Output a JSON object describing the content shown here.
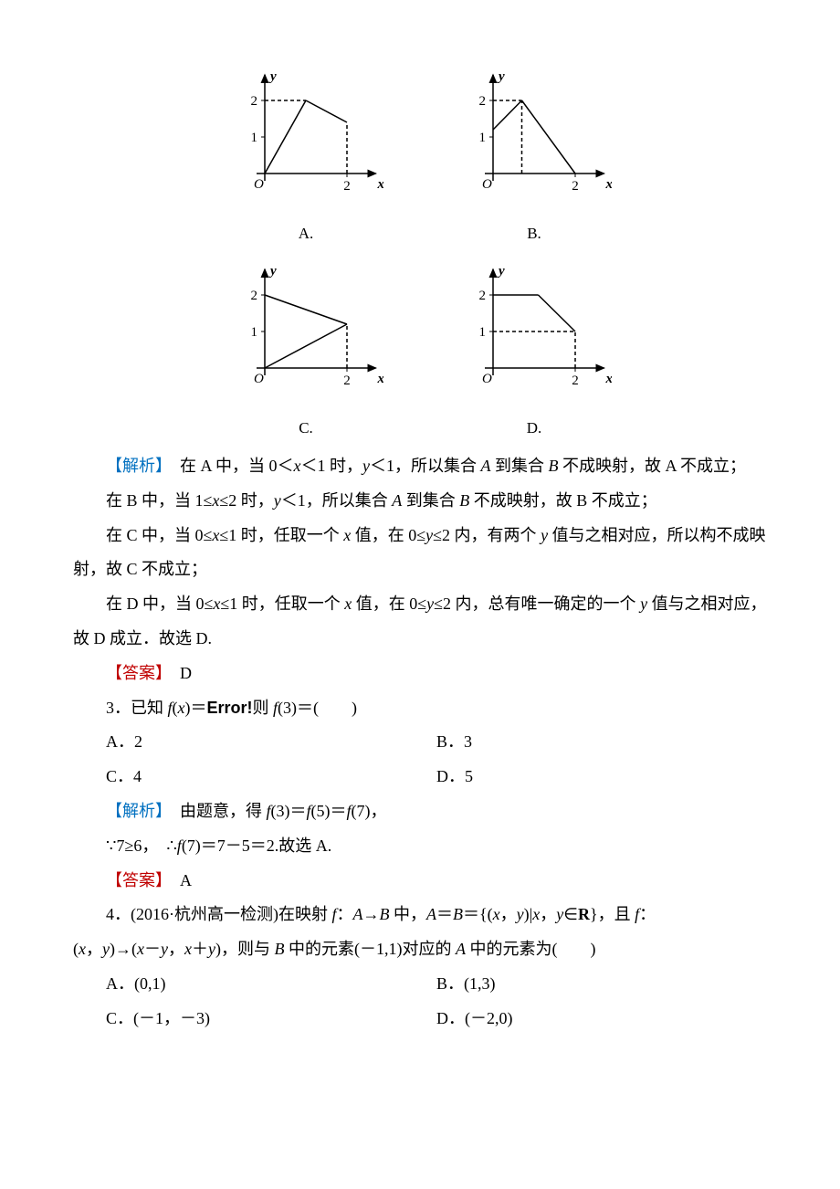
{
  "graphs": {
    "A": {
      "label": "A.",
      "axis_color": "#000000",
      "line_color": "#000000",
      "dash_color": "#000000",
      "y_label": "y",
      "x_label": "x",
      "origin": "O",
      "tick1": "1",
      "tick2": "2",
      "y_ticks": [
        1,
        2
      ],
      "x_ticks": [
        2
      ],
      "segments": [
        {
          "from": [
            0,
            0
          ],
          "to": [
            1,
            2
          ],
          "style": "solid"
        },
        {
          "from": [
            1,
            2
          ],
          "to": [
            2,
            1.4
          ],
          "style": "solid"
        },
        {
          "from": [
            2,
            0
          ],
          "to": [
            2,
            1.4
          ],
          "style": "dashed"
        },
        {
          "from": [
            0,
            2
          ],
          "to": [
            1,
            2
          ],
          "style": "dashed"
        }
      ]
    },
    "B": {
      "label": "B.",
      "axis_color": "#000000",
      "line_color": "#000000",
      "dash_color": "#000000",
      "y_label": "y",
      "x_label": "x",
      "origin": "O",
      "tick1": "1",
      "tick2": "2",
      "y_ticks": [
        1,
        2
      ],
      "x_ticks": [
        2
      ],
      "segments": [
        {
          "from": [
            0,
            1.2
          ],
          "to": [
            0.7,
            2
          ],
          "style": "solid"
        },
        {
          "from": [
            0.7,
            2
          ],
          "to": [
            2,
            0
          ],
          "style": "solid"
        },
        {
          "from": [
            0,
            2
          ],
          "to": [
            0.7,
            2
          ],
          "style": "dashed"
        },
        {
          "from": [
            0.7,
            0
          ],
          "to": [
            0.7,
            2
          ],
          "style": "dashed"
        }
      ]
    },
    "C": {
      "label": "C.",
      "axis_color": "#000000",
      "line_color": "#000000",
      "dash_color": "#000000",
      "y_label": "y",
      "x_label": "x",
      "origin": "O",
      "tick1": "1",
      "tick2": "2",
      "y_ticks": [
        1,
        2
      ],
      "x_ticks": [
        2
      ],
      "segments": [
        {
          "from": [
            0,
            2
          ],
          "to": [
            2,
            1.2
          ],
          "style": "solid"
        },
        {
          "from": [
            0,
            0
          ],
          "to": [
            2,
            1.2
          ],
          "style": "solid"
        },
        {
          "from": [
            2,
            0
          ],
          "to": [
            2,
            1.2
          ],
          "style": "dashed"
        }
      ]
    },
    "D": {
      "label": "D.",
      "axis_color": "#000000",
      "line_color": "#000000",
      "dash_color": "#000000",
      "y_label": "y",
      "x_label": "x",
      "origin": "O",
      "tick1": "1",
      "tick2": "2",
      "y_ticks": [
        1,
        2
      ],
      "x_ticks": [
        2
      ],
      "segments": [
        {
          "from": [
            0,
            2
          ],
          "to": [
            1.1,
            2
          ],
          "style": "solid"
        },
        {
          "from": [
            1.1,
            2
          ],
          "to": [
            2,
            1
          ],
          "style": "solid"
        },
        {
          "from": [
            0,
            1
          ],
          "to": [
            2,
            1
          ],
          "style": "dashed"
        },
        {
          "from": [
            2,
            0
          ],
          "to": [
            2,
            1
          ],
          "style": "dashed"
        }
      ]
    },
    "svg": {
      "width": 170,
      "height": 150,
      "ox": 40,
      "oy": 120,
      "ux": 45,
      "uy": 40
    }
  },
  "para": {
    "analysis_label": "【解析】",
    "answer_label": "【答案】",
    "a_line1_a": "　在 A 中，当 0＜",
    "a_line1_b": "＜1 时，",
    "a_line1_c": "＜1，所以集合 ",
    "a_line1_d": " 到集合 ",
    "a_line1_e": " 不成映射，故 A 不成立；",
    "b_line_a": "在 B 中，当 1≤",
    "b_line_b": "≤2 时，",
    "b_line_c": "＜1，所以集合 ",
    "b_line_d": " 到集合 ",
    "b_line_e": " 不成映射，故 B 不成立；",
    "c_line_a": "在 C 中，当 0≤",
    "c_line_b": "≤1 时，任取一个 ",
    "c_line_c": " 值，在 0≤",
    "c_line_d": "≤2 内，有两个 ",
    "c_line_e": " 值与之相对应，所以构不成映射，故 C 不成立；",
    "d_line_a": "在 D 中，当 0≤",
    "d_line_b": "≤1 时，任取一个 ",
    "d_line_c": " 值，在 0≤",
    "d_line_d": "≤2 内，总有唯一确定的一个 ",
    "d_line_e": " 值与之相对应，故 D 成立．故选 D.",
    "ans_d": "　D",
    "q3_a": "3．已知 ",
    "q3_b": "＝",
    "q3_err": "Error!",
    "q3_c": "则 ",
    "q3_d": "(3)＝(　　)",
    "q3_optA": "A．2",
    "q3_optB": "B．3",
    "q3_optC": "C．4",
    "q3_optD": "D．5",
    "q3_sol_a": "　由题意，得 ",
    "q3_sol_b": "(3)＝",
    "q3_sol_c": "(5)＝",
    "q3_sol_d": "(7)，",
    "q3_sol2_a": "∵7≥6，　∴",
    "q3_sol2_b": "(7)＝7－5＝2.故选 A.",
    "ans_a": "　A",
    "q4_a": "4．(2016·杭州高一检测)在映射 ",
    "q4_b": "：",
    "q4_c": " 中，",
    "q4_d": "＝",
    "q4_e": "＝{(",
    "q4_f": "，",
    "q4_g": ")|",
    "q4_h": "，",
    "q4_i": "∈",
    "q4_j": "}，且 ",
    "q4_k": "：",
    "q4_l_a": "(",
    "q4_l_b": "，",
    "q4_l_c": ")→(",
    "q4_l_d": "－",
    "q4_l_e": "，",
    "q4_l_f": "＋",
    "q4_l_g": ")，则与 ",
    "q4_l_h": " 中的元素(－1,1)对应的 ",
    "q4_l_i": " 中的元素为(　　)",
    "q4_optA": "A．(0,1)",
    "q4_optB": "B．(1,3)",
    "q4_optC": "C．(－1，－3)",
    "q4_optD": "D．(－2,0)"
  },
  "sym": {
    "x": "x",
    "y": "y",
    "A": "A",
    "B": "B",
    "f": "f",
    "fx": "f",
    "fx_arg": "(x)",
    "AtoB": "A→B",
    "R": "R"
  }
}
